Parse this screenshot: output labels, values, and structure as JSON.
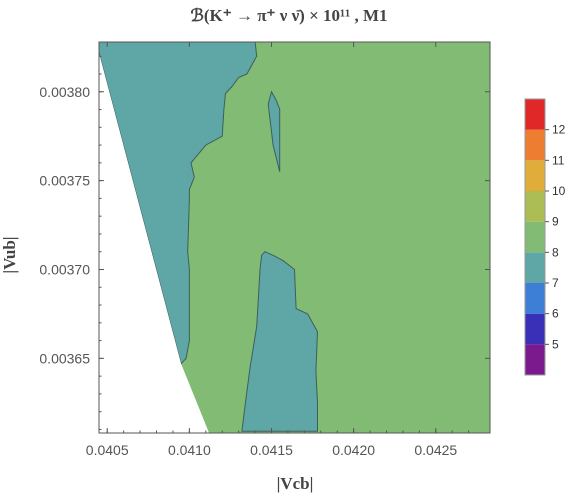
{
  "chart_data": {
    "type": "contour",
    "title": "ℬ(K⁺ → π⁺ ν ν̄) × 10¹¹ , M1",
    "xlabel": "|Vcb|",
    "ylabel": "|Vub|",
    "x_ticks": [
      "0.0405",
      "0.0410",
      "0.0415",
      "0.0420",
      "0.0425"
    ],
    "x_tick_values": [
      0.0405,
      0.041,
      0.0415,
      0.042,
      0.0425
    ],
    "y_ticks": [
      "0.00365",
      "0.00370",
      "0.00375",
      "0.00380"
    ],
    "y_tick_values": [
      0.00365,
      0.0037,
      0.00375,
      0.0038
    ],
    "xlim": [
      0.04045,
      0.04283
    ],
    "ylim": [
      0.003608,
      0.003828
    ],
    "frame_color": "#555555",
    "region_colors": {
      "level_7_8": "#5fa6a6",
      "level_8_9": "#82bb73",
      "no_data": "#ffffff"
    },
    "regions": [
      {
        "level": "7-8",
        "name": "left-teal-region",
        "points": [
          [
            0.04045,
            0.003828
          ],
          [
            0.0414,
            0.003828
          ],
          [
            0.04141,
            0.00382
          ],
          [
            0.04135,
            0.00381
          ],
          [
            0.0413,
            0.003808
          ],
          [
            0.04126,
            0.003803
          ],
          [
            0.04122,
            0.003799
          ],
          [
            0.04121,
            0.00379
          ],
          [
            0.0412,
            0.003775
          ],
          [
            0.0411,
            0.00377
          ],
          [
            0.04101,
            0.00376
          ],
          [
            0.04103,
            0.003752
          ],
          [
            0.041,
            0.003745
          ],
          [
            0.041,
            0.00374
          ],
          [
            0.04099,
            0.00371
          ],
          [
            0.041,
            0.0037
          ],
          [
            0.041,
            0.003664
          ],
          [
            0.041,
            0.00366
          ],
          [
            0.04098,
            0.00365
          ],
          [
            0.04095,
            0.003647
          ],
          [
            0.04045,
            0.003822
          ]
        ]
      },
      {
        "level": "7-8",
        "name": "thin-teal-island",
        "points": [
          [
            0.0415,
            0.0038
          ],
          [
            0.04153,
            0.003795
          ],
          [
            0.04155,
            0.00379
          ],
          [
            0.04155,
            0.00377
          ],
          [
            0.04155,
            0.003755
          ],
          [
            0.04151,
            0.00377
          ],
          [
            0.04149,
            0.003785
          ],
          [
            0.04148,
            0.003793
          ]
        ]
      },
      {
        "level": "7-8",
        "name": "lower-teal-region",
        "points": [
          [
            0.04132,
            0.003609
          ],
          [
            0.04134,
            0.003624
          ],
          [
            0.04137,
            0.003645
          ],
          [
            0.04141,
            0.003668
          ],
          [
            0.04142,
            0.003684
          ],
          [
            0.04143,
            0.0037
          ],
          [
            0.04144,
            0.003708
          ],
          [
            0.04146,
            0.00371
          ],
          [
            0.04151,
            0.003708
          ],
          [
            0.04157,
            0.003705
          ],
          [
            0.04164,
            0.0037
          ],
          [
            0.04165,
            0.003678
          ],
          [
            0.04172,
            0.003675
          ],
          [
            0.04178,
            0.003665
          ],
          [
            0.04177,
            0.003643
          ],
          [
            0.04178,
            0.003625
          ],
          [
            0.04178,
            0.003609
          ]
        ]
      }
    ],
    "colorbar": {
      "ticks": [
        "5",
        "6",
        "7",
        "8",
        "9",
        "10",
        "11",
        "12"
      ],
      "min": 4,
      "max": 13,
      "bands": [
        {
          "from": 4,
          "to": 5,
          "color": "#7a1a8c"
        },
        {
          "from": 5,
          "to": 6,
          "color": "#3a30b8"
        },
        {
          "from": 6,
          "to": 7,
          "color": "#3d7fd6"
        },
        {
          "from": 7,
          "to": 8,
          "color": "#5fa6a6"
        },
        {
          "from": 8,
          "to": 9,
          "color": "#82bb73"
        },
        {
          "from": 9,
          "to": 10,
          "color": "#acbd55"
        },
        {
          "from": 10,
          "to": 11,
          "color": "#e0ad3a"
        },
        {
          "from": 11,
          "to": 12,
          "color": "#ed7d31"
        },
        {
          "from": 12,
          "to": 13,
          "color": "#e02828"
        }
      ]
    }
  }
}
